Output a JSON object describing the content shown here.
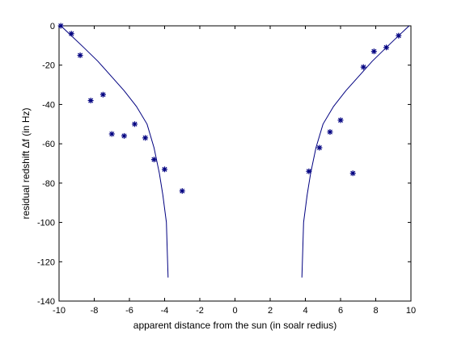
{
  "chart_data": {
    "type": "scatter",
    "title": "",
    "xlabel": "apparent distance from the sun (in soalr redius)",
    "ylabel": "residual redshift Δf (in Hz)",
    "xlim": [
      -10,
      10
    ],
    "ylim": [
      -140,
      0
    ],
    "xticks": [
      -10,
      -8,
      -6,
      -4,
      -2,
      0,
      2,
      4,
      6,
      8,
      10
    ],
    "yticks": [
      0,
      -20,
      -40,
      -60,
      -80,
      -100,
      -120,
      -140
    ],
    "grid": false,
    "legend": "none",
    "series": [
      {
        "kind": "points",
        "marker": "asterisk",
        "color": "#000080",
        "x": [
          -9.9,
          -9.3,
          -8.8,
          -8.2,
          -7.5,
          -7.0,
          -6.3,
          -5.7,
          -5.1,
          -4.6,
          -4.0,
          -3.0,
          4.2,
          4.8,
          5.4,
          6.0,
          6.7,
          7.3,
          7.9,
          8.6,
          9.3
        ],
        "y": [
          0,
          -4,
          -15,
          -38,
          -35,
          -55,
          -56,
          -50,
          -57,
          -68,
          -73,
          -84,
          -74,
          -62,
          -54,
          -48,
          -75,
          -21,
          -13,
          -11,
          -5
        ]
      },
      {
        "kind": "curve",
        "color": "#000080",
        "x": [
          -9.9,
          -9.3,
          -8.6,
          -7.8,
          -7.0,
          -6.3,
          -5.6,
          -5.0,
          -4.6,
          -4.3,
          -4.1,
          -3.9,
          -3.85,
          -3.8
        ],
        "y": [
          0,
          -5,
          -11,
          -18,
          -26,
          -33,
          -41,
          -50,
          -62,
          -75,
          -86,
          -100,
          -115,
          -128
        ]
      },
      {
        "kind": "curve",
        "color": "#000080",
        "x": [
          3.8,
          3.85,
          3.9,
          4.1,
          4.3,
          4.6,
          5.0,
          5.6,
          6.3,
          7.0,
          7.8,
          8.6,
          9.3,
          9.9
        ],
        "y": [
          -128,
          -115,
          -100,
          -86,
          -75,
          -62,
          -50,
          -41,
          -33,
          -26,
          -18,
          -11,
          -5,
          0
        ]
      }
    ]
  }
}
